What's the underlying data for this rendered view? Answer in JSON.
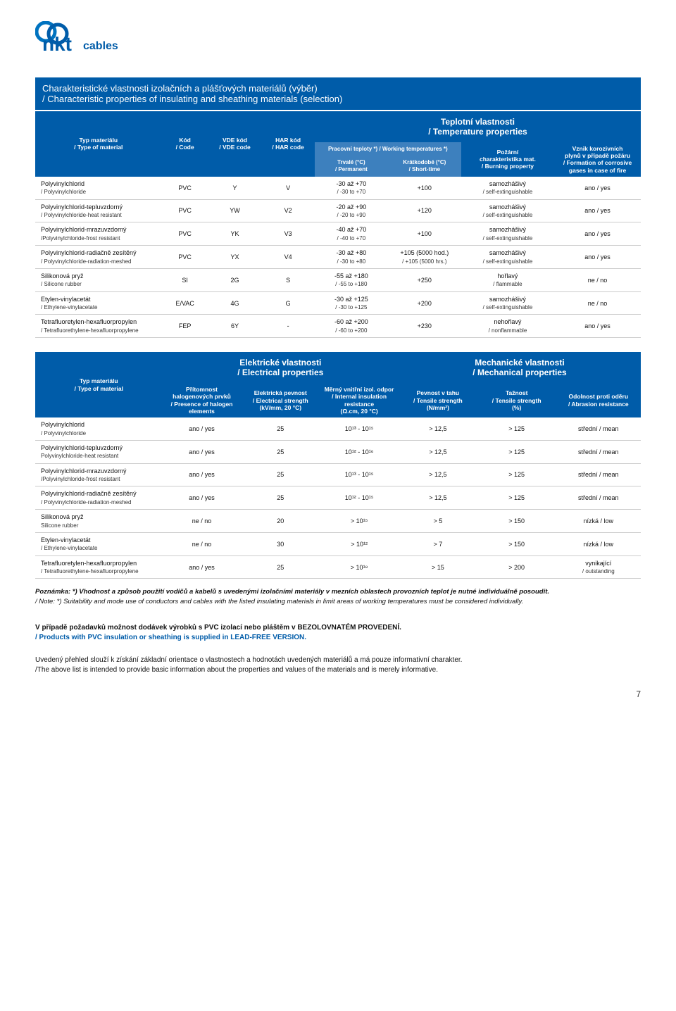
{
  "logo": {
    "brand": "nkt",
    "suffix": "cables",
    "color_main": "#005ca9",
    "color_ring": "#0073c0"
  },
  "title": {
    "main": "Charakteristické vlastnosti izolačních a plášťových materiálů (výběr)",
    "sub": "/ Characteristic properties of insulating and sheathing materials (selection)"
  },
  "t1": {
    "section_title": "Teplotní vlastnosti\n/ Temperature properties",
    "headers": {
      "type": "Typ materiálu\n/ Type of material",
      "code": "Kód\n/ Code",
      "vde": "VDE kód\n/ VDE code",
      "har": "HAR kód\n/ HAR code",
      "working": "Pracovní teploty *) / Working temperatures *)",
      "permanent": "Trvalé (°C)\n/ Permanent",
      "short": "Krátkodobé (°C)\n/ Short-time",
      "burning": "Požární\ncharakteristika mat.\n/ Burning property",
      "corrosive": "Vznik korozivních\nplynů v případě požáru\n/ Formation of corrosive\ngases in case of fire"
    },
    "rows": [
      {
        "mat": "Polyvinylchlorid",
        "mat_en": "/ Polyvinylchloride",
        "code": "PVC",
        "vde": "Y",
        "har": "V",
        "perm": "-30 až +70",
        "perm_en": "/ -30 to +70",
        "short": "+100",
        "burn": "samozhášivý",
        "burn_en": "/ self-extinguishable",
        "corr": "ano / yes"
      },
      {
        "mat": "Polyvinylchlorid-tepluvzdorný",
        "mat_en": "/ Polyvinylchloride-heat resistant",
        "code": "PVC",
        "vde": "YW",
        "har": "V2",
        "perm": "-20 až +90",
        "perm_en": "/ -20 to +90",
        "short": "+120",
        "burn": "samozhášivý",
        "burn_en": "/ self-extinguishable",
        "corr": "ano / yes"
      },
      {
        "mat": "Polyvinylchlorid-mrazuvzdorný",
        "mat_en": "/Polyvinylchloride-frost resistant",
        "code": "PVC",
        "vde": "YK",
        "har": "V3",
        "perm": "-40 až +70",
        "perm_en": "/ -40 to +70",
        "short": "+100",
        "burn": "samozhášivý",
        "burn_en": "/ self-extinguishable",
        "corr": "ano / yes"
      },
      {
        "mat": "Polyvinylchlorid-radiačně zesítěný",
        "mat_en": "/ Polyvinylchloride-radiation-meshed",
        "code": "PVC",
        "vde": "YX",
        "har": "V4",
        "perm": "-30 až +80",
        "perm_en": "/ -30 to +80",
        "short": "+105 (5000 hod.)",
        "short_en": "/ +105 (5000 hrs.)",
        "burn": "samozhášivý",
        "burn_en": "/ self-extinguishable",
        "corr": "ano / yes"
      },
      {
        "mat": "Silikonová pryž",
        "mat_en": "/ Silicone rubber",
        "code": "SI",
        "vde": "2G",
        "har": "S",
        "perm": "-55 až +180",
        "perm_en": "/ -55 to +180",
        "short": "+250",
        "burn": "hořlavý",
        "burn_en": "/ flammable",
        "corr": "ne / no"
      },
      {
        "mat": "Etylen-vinylacetát",
        "mat_en": "/ Ethylene-vinylacetate",
        "code": "E/VAC",
        "vde": "4G",
        "har": "G",
        "perm": "-30 až +125",
        "perm_en": "/ -30 to +125",
        "short": "+200",
        "burn": "samozhášivý",
        "burn_en": "/ self-extinguishable",
        "corr": "ne / no"
      },
      {
        "mat": "Tetrafluoretylen-hexafluorpropylen",
        "mat_en": "/ Tetrafluorethylene-hexafluorpropylene",
        "code": "FEP",
        "vde": "6Y",
        "har": "-",
        "perm": "-60 až +200",
        "perm_en": "/ -60 to +200",
        "short": "+230",
        "burn": "nehořlavý",
        "burn_en": "/ nonflammable",
        "corr": "ano / yes"
      }
    ]
  },
  "t2": {
    "section_el": "Elektrické vlastnosti\n/ Electrical properties",
    "section_mech": "Mechanické vlastnosti\n/ Mechanical properties",
    "headers": {
      "type": "Typ materiálu\n/ Type of material",
      "halogen": "Přítomnost\nhalogenových prvků\n/ Presence of halogen\nelements",
      "estrength": "Elektrická pevnost\n/ Electrical strength\n(kV/mm, 20 °C)",
      "iresist": "Měrný vnitřní izol. odpor\n/ Internal insulation\nresistance\n(Ω.cm, 20 °C)",
      "tensile": "Pevnost v tahu\n/ Tensile strength\n(N/mm²)",
      "tstrength": "Tažnost\n/ Tensile strength\n(%)",
      "abrasion": "Odolnost proti oděru\n/ Abrasion resistance"
    },
    "rows": [
      {
        "mat": "Polyvinylchlorid",
        "mat_en": "/ Polyvinylchloride",
        "hal": "ano / yes",
        "es": "25",
        "ir": "10¹³ - 10¹⁵",
        "ten": "> 12,5",
        "ts": "> 125",
        "ab": "střední / mean"
      },
      {
        "mat": "Polyvinylchlorid-tepluvzdorný",
        "mat_en": "Polyvinylchloride-heat resistant",
        "hal": "ano / yes",
        "es": "25",
        "ir": "10¹² - 10¹⁶",
        "ten": "> 12,5",
        "ts": "> 125",
        "ab": "střední / mean"
      },
      {
        "mat": "Polyvinylchlorid-mrazuvzdorný",
        "mat_en": "/Polyvinylchloride-frost resistant",
        "hal": "ano / yes",
        "es": "25",
        "ir": "10¹³ - 10¹⁵",
        "ten": "> 12,5",
        "ts": "> 125",
        "ab": "střední / mean"
      },
      {
        "mat": "Polyvinylchlorid-radiačně zesítěný",
        "mat_en": "/ Polyvinylchloride-radiation-meshed",
        "hal": "ano / yes",
        "es": "25",
        "ir": "10¹² - 10¹⁵",
        "ten": "> 12,5",
        "ts": "> 125",
        "ab": "střední / mean"
      },
      {
        "mat": "Silikonová pryž",
        "mat_en": "Silicone rubber",
        "hal": "ne / no",
        "es": "20",
        "ir": "> 10¹⁵",
        "ten": "> 5",
        "ts": "> 150",
        "ab": "nízká / low"
      },
      {
        "mat": "Etylen-vinylacetát",
        "mat_en": "/ Ethylene-vinylacetate",
        "hal": "ne / no",
        "es": "30",
        "ir": "> 10¹²",
        "ten": "> 7",
        "ts": "> 150",
        "ab": "nízká / low"
      },
      {
        "mat": "Tetrafluoretylen-hexafluorpropylen",
        "mat_en": "/ Tetrafluorethylene-hexafluorpropylene",
        "hal": "ano / yes",
        "es": "25",
        "ir": "> 10¹⁸",
        "ten": "> 15",
        "ts": "> 200",
        "ab": "vynikající",
        "ab_en": "/ outstanding"
      }
    ]
  },
  "note1": {
    "a": "Poznámka:  *) Vhodnost a způsob použití vodičů a kabelů s uvedenými izolačními materiály v mezních oblastech provozních teplot je nutné individuálně posoudit.",
    "b": "/ Note:  *) Suitability and mode  use of conductors and cables with the listed insulating materials in limit areas of working temperatures must be considered individually."
  },
  "note2": {
    "a": "V případě požadavků možnost dodávek výrobků s PVC izolací nebo pláštěm v BEZOLOVNATÉM PROVEDENÍ.",
    "b": "/ Products with PVC insulation or sheathing is supplied in LEAD-FREE VERSION."
  },
  "note3": {
    "a": "Uvedený přehled slouží k získání základní orientace o vlastnostech a hodnotách uvedených materiálů a má pouze informativní charakter.",
    "b": "/The above list is intended to provide basic information about the properties and values of the materials and is merely informative."
  },
  "page_number": "7",
  "colors": {
    "header_bg": "#005ca9",
    "subheader_bg": "#3d80be"
  }
}
